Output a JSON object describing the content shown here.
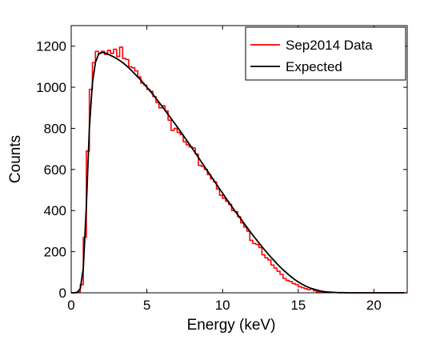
{
  "chart_data": {
    "type": "line",
    "title": "",
    "xlabel": "Energy (keV)",
    "ylabel": "Counts",
    "xlim": [
      0,
      22.2
    ],
    "ylim": [
      0,
      1300
    ],
    "grid": false,
    "legend_position": "top-right",
    "x_ticks": [
      0,
      5,
      10,
      15,
      20
    ],
    "y_ticks": [
      0,
      200,
      400,
      600,
      800,
      1000,
      1200
    ],
    "x_tick_labels": [
      "0",
      "5",
      "10",
      "15",
      "20"
    ],
    "y_tick_labels": [
      "0",
      "200",
      "400",
      "600",
      "800",
      "1000",
      "1200"
    ],
    "series": [
      {
        "name": "Sep2014 Data",
        "color": "#ff0000",
        "style": "step",
        "x": [
          0,
          0.2,
          0.4,
          0.6,
          0.8,
          1.0,
          1.2,
          1.4,
          1.6,
          1.8,
          2.0,
          2.2,
          2.4,
          2.6,
          2.8,
          3.0,
          3.2,
          3.4,
          3.6,
          3.8,
          4.0,
          4.2,
          4.4,
          4.6,
          4.8,
          5.0,
          5.2,
          5.4,
          5.6,
          5.8,
          6.0,
          6.2,
          6.4,
          6.6,
          6.8,
          7.0,
          7.2,
          7.4,
          7.6,
          7.8,
          8.0,
          8.2,
          8.4,
          8.6,
          8.8,
          9.0,
          9.2,
          9.4,
          9.6,
          9.8,
          10.0,
          10.2,
          10.4,
          10.6,
          10.8,
          11.0,
          11.2,
          11.4,
          11.6,
          11.8,
          12.0,
          12.2,
          12.4,
          12.6,
          12.8,
          13.0,
          13.2,
          13.4,
          13.6,
          13.8,
          14.0,
          14.2,
          14.4,
          14.6,
          14.8,
          15.0,
          15.2,
          15.4,
          15.6,
          15.8,
          16.0,
          16.2,
          16.4,
          16.6,
          16.8,
          17.0,
          17.2,
          17.4,
          17.6,
          17.8,
          18.0,
          18.2,
          18.4,
          18.6,
          18.8,
          19.0,
          19.2,
          19.4,
          19.6,
          19.8,
          20.0,
          20.2,
          20.4,
          20.6,
          20.8,
          21.0,
          21.2,
          21.4,
          21.6,
          21.8,
          22.0
        ],
        "values": [
          0,
          0,
          5,
          40,
          270,
          690,
          990,
          1120,
          1175,
          1165,
          1175,
          1160,
          1180,
          1165,
          1185,
          1150,
          1195,
          1140,
          1135,
          1100,
          1095,
          1080,
          1050,
          1020,
          1010,
          990,
          980,
          955,
          925,
          900,
          910,
          885,
          840,
          790,
          800,
          780,
          770,
          735,
          720,
          710,
          705,
          675,
          620,
          615,
          600,
          575,
          555,
          540,
          505,
          475,
          460,
          445,
          430,
          400,
          395,
          370,
          340,
          320,
          300,
          255,
          240,
          235,
          220,
          185,
          170,
          160,
          135,
          120,
          105,
          90,
          70,
          60,
          55,
          45,
          40,
          30,
          25,
          20,
          15,
          20,
          10,
          5,
          5,
          5,
          2,
          2,
          2,
          1,
          0,
          0,
          0,
          0,
          0,
          0,
          0,
          0,
          0,
          0,
          0,
          0,
          0,
          0,
          0,
          0,
          0,
          0,
          0,
          0,
          0,
          0,
          0
        ]
      },
      {
        "name": "Expected",
        "color": "#000000",
        "style": "line",
        "x": [
          0,
          0.2,
          0.4,
          0.6,
          0.8,
          1.0,
          1.2,
          1.4,
          1.6,
          1.8,
          2.0,
          2.2,
          2.4,
          2.6,
          2.8,
          3.0,
          3.2,
          3.4,
          3.6,
          3.8,
          4.0,
          4.2,
          4.4,
          4.6,
          4.8,
          5.0,
          5.2,
          5.4,
          5.6,
          5.8,
          6.0,
          6.2,
          6.4,
          6.6,
          6.8,
          7.0,
          7.2,
          7.4,
          7.6,
          7.8,
          8.0,
          8.2,
          8.4,
          8.6,
          8.8,
          9.0,
          9.2,
          9.4,
          9.6,
          9.8,
          10.0,
          10.2,
          10.4,
          10.6,
          10.8,
          11.0,
          11.2,
          11.4,
          11.6,
          11.8,
          12.0,
          12.2,
          12.4,
          12.6,
          12.8,
          13.0,
          13.2,
          13.4,
          13.6,
          13.8,
          14.0,
          14.2,
          14.4,
          14.6,
          14.8,
          15.0,
          15.2,
          15.4,
          15.6,
          15.8,
          16.0,
          16.2,
          16.4,
          16.6,
          16.8,
          17.0,
          17.2,
          17.4,
          17.6,
          17.8,
          18.0,
          18.2,
          18.4,
          18.6,
          18.8,
          19.0,
          19.2,
          19.4,
          19.6,
          19.8,
          20.0,
          20.2,
          20.4,
          20.6,
          20.8,
          21.0,
          21.2,
          21.4,
          21.6,
          21.8,
          22.0
        ],
        "values": [
          0,
          0,
          3,
          20,
          120,
          420,
          800,
          1020,
          1120,
          1160,
          1170,
          1168,
          1162,
          1155,
          1148,
          1140,
          1130,
          1120,
          1108,
          1095,
          1080,
          1065,
          1050,
          1035,
          1018,
          1000,
          983,
          965,
          946,
          927,
          908,
          888,
          868,
          848,
          828,
          808,
          787,
          766,
          745,
          724,
          702,
          681,
          659,
          637,
          615,
          593,
          572,
          550,
          528,
          506,
          485,
          463,
          442,
          421,
          400,
          380,
          360,
          340,
          320,
          300,
          280,
          262,
          243,
          225,
          207,
          190,
          173,
          157,
          141,
          126,
          112,
          99,
          86,
          74,
          63,
          53,
          44,
          36,
          29,
          23,
          18,
          14,
          10,
          7,
          5,
          4,
          3,
          2,
          1,
          1,
          1,
          0,
          0,
          0,
          0,
          0,
          0,
          0,
          0,
          0,
          0,
          0,
          0,
          0,
          0,
          0,
          0,
          0,
          0,
          0,
          0
        ]
      }
    ]
  }
}
